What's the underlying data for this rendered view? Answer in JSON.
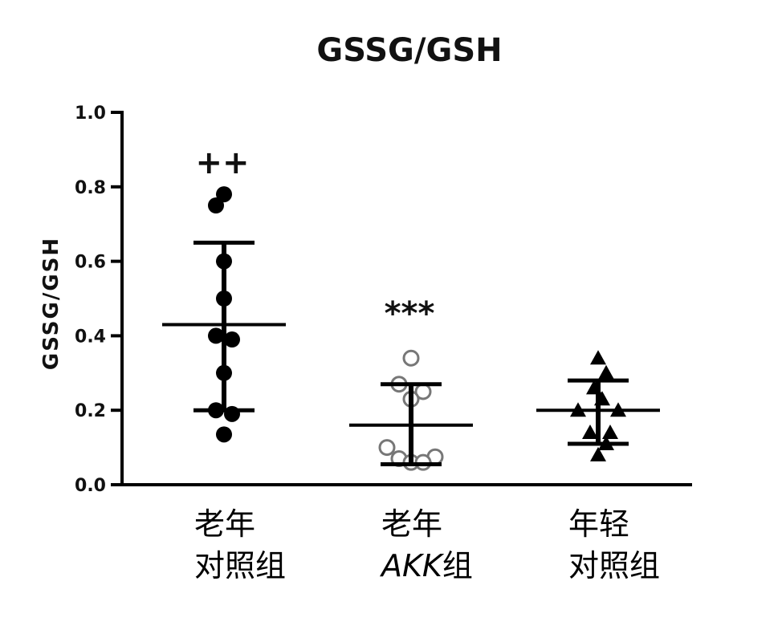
{
  "chart_data": {
    "type": "scatter",
    "title": "GSSG/GSH",
    "ylabel": "GSSG/GSH",
    "ylim": [
      0,
      1.0
    ],
    "yticks": [
      "0.0",
      "0.2",
      "0.4",
      "0.6",
      "0.8",
      "1.0"
    ],
    "grid": false,
    "groups": [
      {
        "label_lines": [
          "老年",
          "对照组"
        ],
        "marker": "filled-circle",
        "annotation": "++",
        "mean": 0.43,
        "sd_upper": 0.65,
        "sd_lower": 0.2,
        "points": [
          {
            "x": 0.0,
            "y": 0.78
          },
          {
            "x": -0.4,
            "y": 0.75
          },
          {
            "x": 0.0,
            "y": 0.6
          },
          {
            "x": 0.0,
            "y": 0.5
          },
          {
            "x": -0.4,
            "y": 0.4
          },
          {
            "x": 0.4,
            "y": 0.39
          },
          {
            "x": 0.0,
            "y": 0.3
          },
          {
            "x": -0.4,
            "y": 0.2
          },
          {
            "x": 0.4,
            "y": 0.19
          },
          {
            "x": 0.0,
            "y": 0.135
          }
        ]
      },
      {
        "label_lines": [
          "老年",
          "AKK组"
        ],
        "label_italic_prefix": "AKK",
        "label_rest": "组",
        "marker": "open-circle",
        "annotation": "***",
        "mean": 0.16,
        "sd_upper": 0.27,
        "sd_lower": 0.055,
        "points": [
          {
            "x": 0.0,
            "y": 0.34
          },
          {
            "x": -0.6,
            "y": 0.27
          },
          {
            "x": 0.6,
            "y": 0.25
          },
          {
            "x": 0.0,
            "y": 0.23
          },
          {
            "x": -1.2,
            "y": 0.1
          },
          {
            "x": 1.2,
            "y": 0.075
          },
          {
            "x": -0.6,
            "y": 0.07
          },
          {
            "x": 0.0,
            "y": 0.06
          },
          {
            "x": 0.6,
            "y": 0.06
          }
        ]
      },
      {
        "label_lines": [
          "年轻",
          "对照组"
        ],
        "marker": "filled-triangle",
        "annotation": "",
        "mean": 0.2,
        "sd_upper": 0.28,
        "sd_lower": 0.11,
        "points": [
          {
            "x": 0.0,
            "y": 0.34
          },
          {
            "x": 0.4,
            "y": 0.3
          },
          {
            "x": -0.2,
            "y": 0.26
          },
          {
            "x": 0.2,
            "y": 0.23
          },
          {
            "x": -1.0,
            "y": 0.2
          },
          {
            "x": 1.0,
            "y": 0.2
          },
          {
            "x": -0.4,
            "y": 0.14
          },
          {
            "x": 0.6,
            "y": 0.14
          },
          {
            "x": 0.4,
            "y": 0.11
          },
          {
            "x": 0.0,
            "y": 0.08
          }
        ]
      }
    ]
  }
}
